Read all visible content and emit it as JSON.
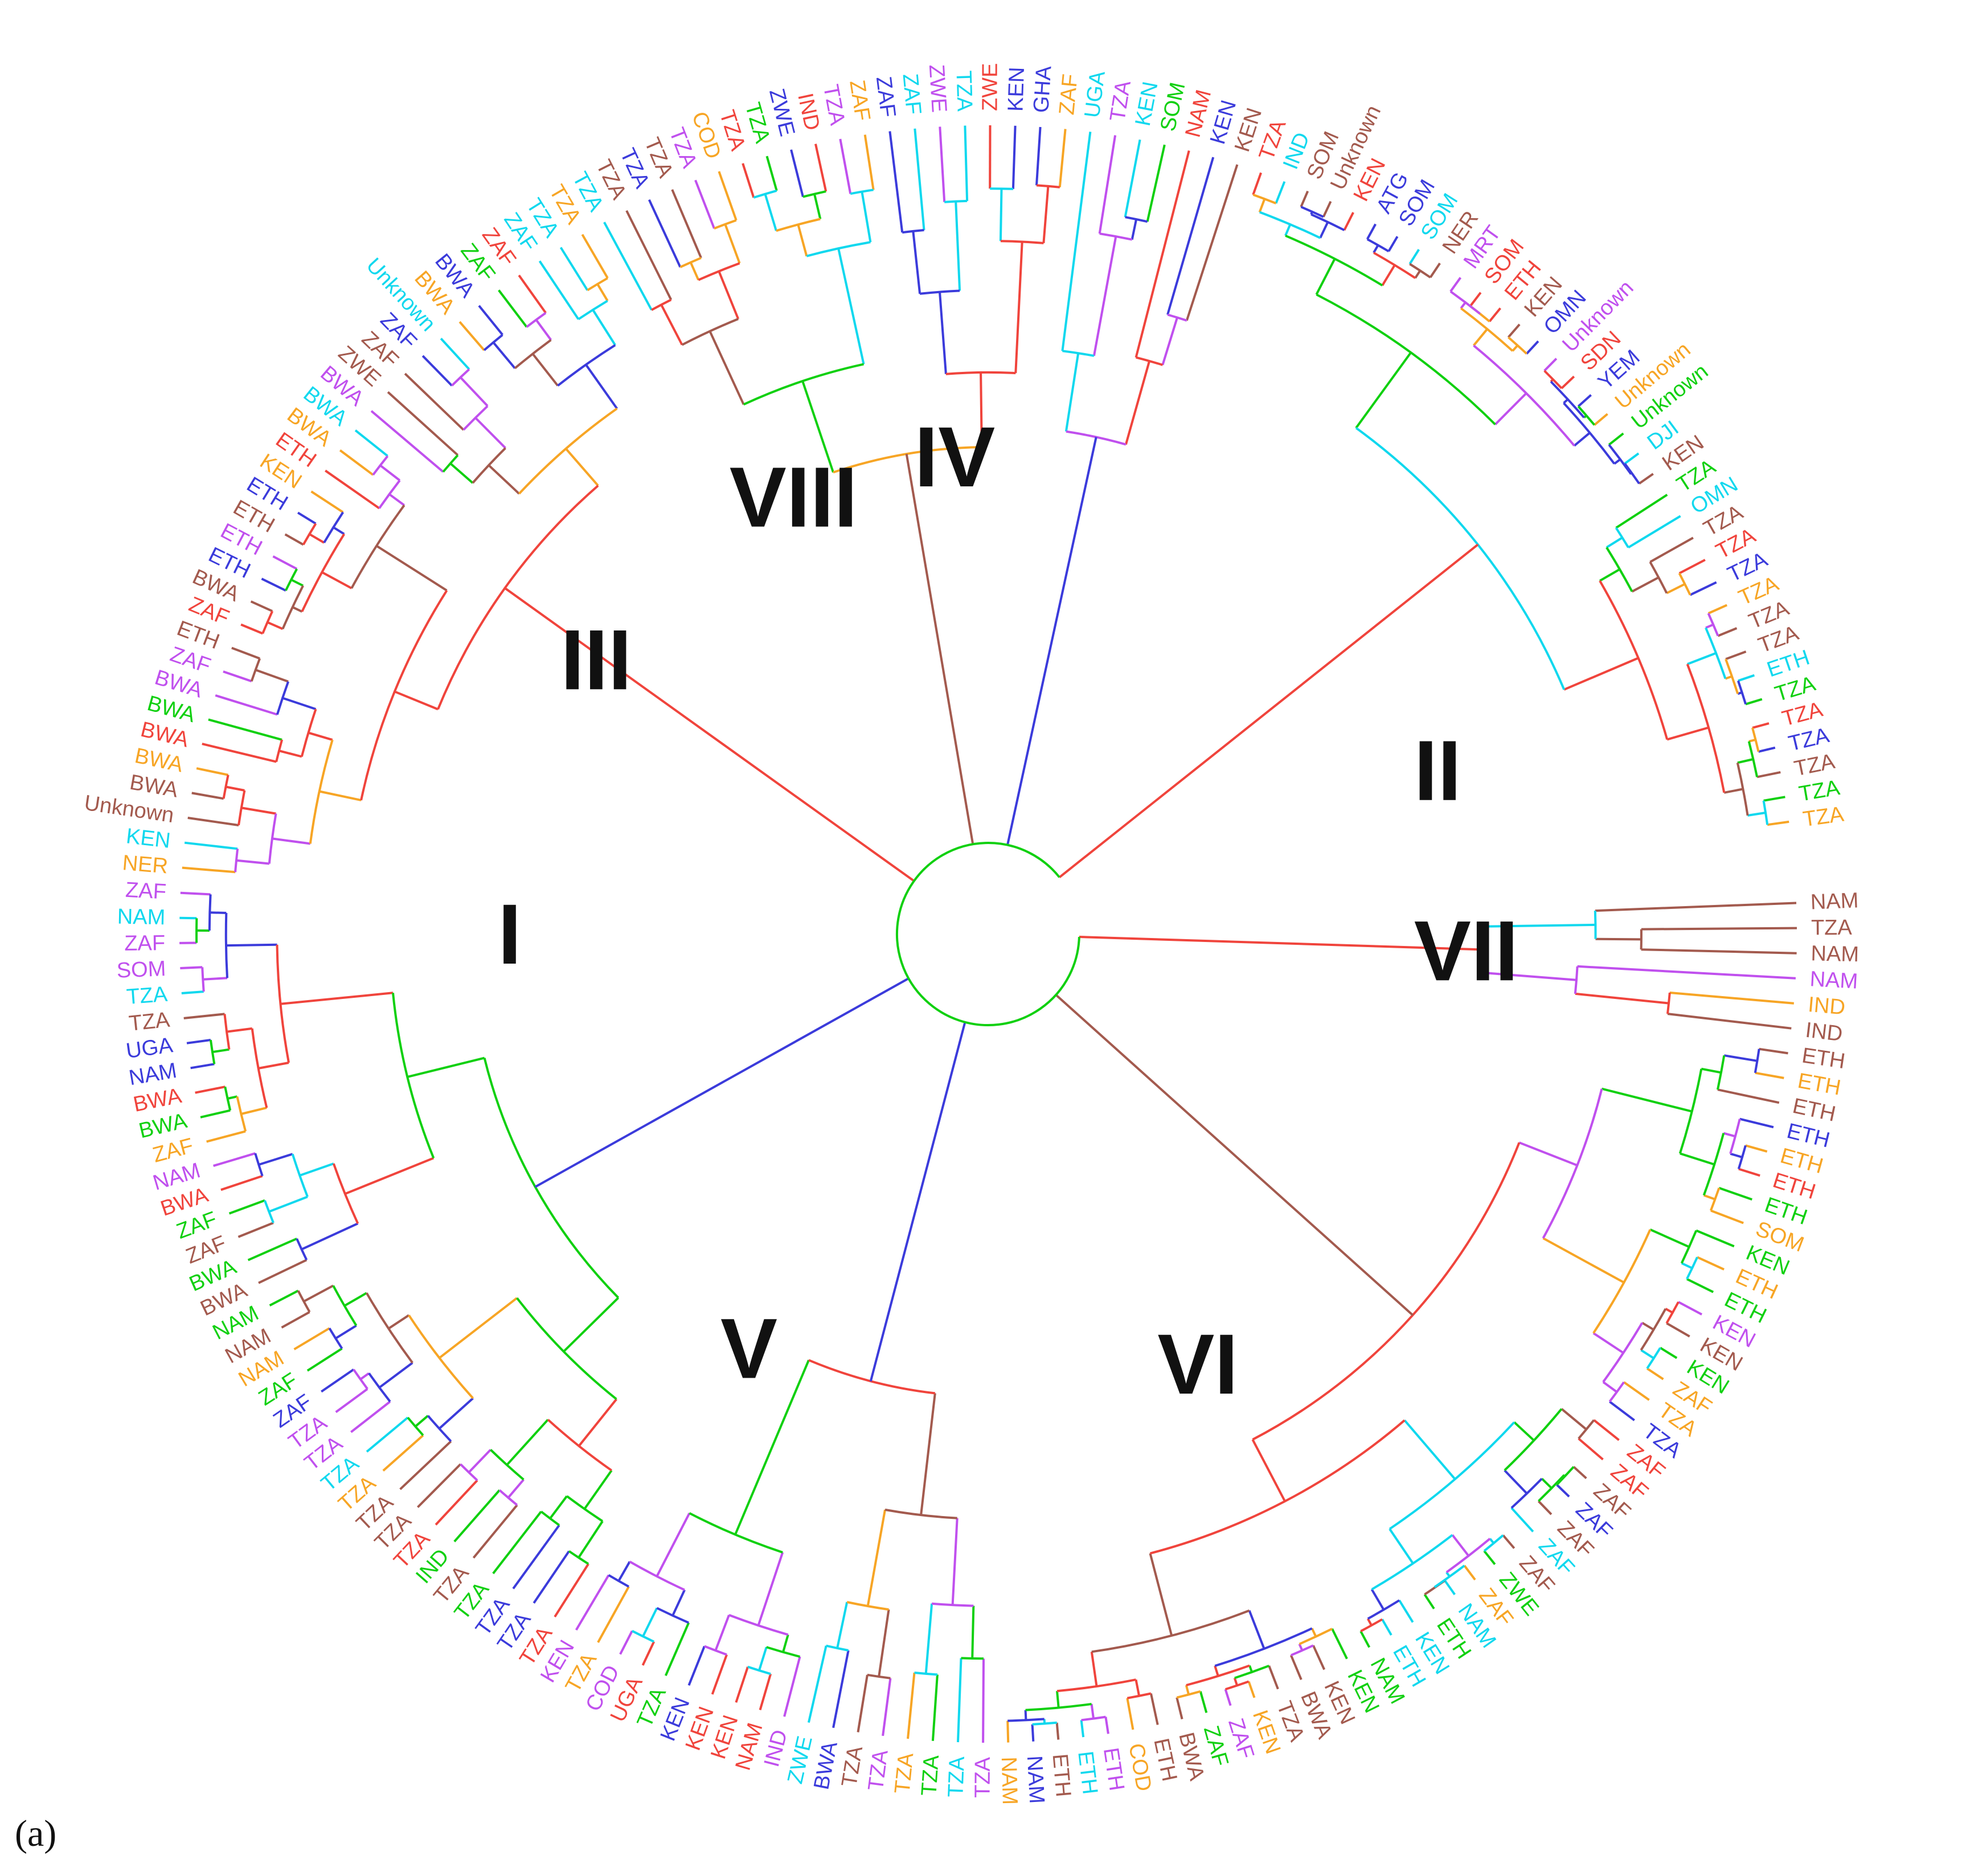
{
  "panel_label": "(a)",
  "colors": {
    "red": "#f0443c",
    "blue": "#3b3bdb",
    "green": "#10d010",
    "magenta": "#c050ee",
    "cyan": "#10d8ee",
    "orange": "#f7a525",
    "brown": "#a35a4e"
  },
  "clades": [
    {
      "label": "I",
      "angle": 180
    },
    {
      "label": "II",
      "angle": 20
    },
    {
      "label": "III",
      "angle": 145
    },
    {
      "label": "IV",
      "angle": 94
    },
    {
      "label": "V",
      "angle": 240
    },
    {
      "label": "VI",
      "angle": 296
    },
    {
      "label": "VII",
      "angle": 358
    },
    {
      "label": "VIII",
      "angle": 114
    }
  ],
  "leaves": [
    {
      "text": "NAM",
      "color": "brown"
    },
    {
      "text": "TZA",
      "color": "brown"
    },
    {
      "text": "NAM",
      "color": "brown"
    },
    {
      "text": "NAM",
      "color": "magenta"
    },
    {
      "text": "IND",
      "color": "orange"
    },
    {
      "text": "IND",
      "color": "brown"
    },
    {
      "text": "ETH",
      "color": "brown"
    },
    {
      "text": "ETH",
      "color": "orange"
    },
    {
      "text": "ETH",
      "color": "brown"
    },
    {
      "text": "ETH",
      "color": "blue"
    },
    {
      "text": "ETH",
      "color": "orange"
    },
    {
      "text": "ETH",
      "color": "red"
    },
    {
      "text": "ETH",
      "color": "green"
    },
    {
      "text": "SOM",
      "color": "orange"
    },
    {
      "text": "KEN",
      "color": "green"
    },
    {
      "text": "ETH",
      "color": "orange"
    },
    {
      "text": "ETH",
      "color": "green"
    },
    {
      "text": "KEN",
      "color": "magenta"
    },
    {
      "text": "KEN",
      "color": "brown"
    },
    {
      "text": "KEN",
      "color": "green"
    },
    {
      "text": "ZAF",
      "color": "orange"
    },
    {
      "text": "TZA",
      "color": "orange"
    },
    {
      "text": "TZA",
      "color": "blue"
    },
    {
      "text": "ZAF",
      "color": "red"
    },
    {
      "text": "ZAF",
      "color": "red"
    },
    {
      "text": "ZAF",
      "color": "brown"
    },
    {
      "text": "ZAF",
      "color": "blue"
    },
    {
      "text": "ZAF",
      "color": "brown"
    },
    {
      "text": "ZAF",
      "color": "cyan"
    },
    {
      "text": "ZAF",
      "color": "brown"
    },
    {
      "text": "ZWE",
      "color": "green"
    },
    {
      "text": "ZAF",
      "color": "orange"
    },
    {
      "text": "NAM",
      "color": "cyan"
    },
    {
      "text": "ETH",
      "color": "green"
    },
    {
      "text": "KEN",
      "color": "cyan"
    },
    {
      "text": "ETH",
      "color": "cyan"
    },
    {
      "text": "NAM",
      "color": "green"
    },
    {
      "text": "KEN",
      "color": "green"
    },
    {
      "text": "KEN",
      "color": "brown"
    },
    {
      "text": "BWA",
      "color": "brown"
    },
    {
      "text": "TZA",
      "color": "brown"
    },
    {
      "text": "KEN",
      "color": "orange"
    },
    {
      "text": "ZAF",
      "color": "magenta"
    },
    {
      "text": "ZAF",
      "color": "green"
    },
    {
      "text": "BWA",
      "color": "brown"
    },
    {
      "text": "ETH",
      "color": "brown"
    },
    {
      "text": "COD",
      "color": "orange"
    },
    {
      "text": "ETH",
      "color": "magenta"
    },
    {
      "text": "ETH",
      "color": "cyan"
    },
    {
      "text": "ETH",
      "color": "brown"
    },
    {
      "text": "NAM",
      "color": "blue"
    },
    {
      "text": "NAM",
      "color": "orange"
    },
    {
      "text": "TZA",
      "color": "magenta"
    },
    {
      "text": "TZA",
      "color": "cyan"
    },
    {
      "text": "TZA",
      "color": "green"
    },
    {
      "text": "TZA",
      "color": "orange"
    },
    {
      "text": "TZA",
      "color": "magenta"
    },
    {
      "text": "TZA",
      "color": "brown"
    },
    {
      "text": "BWA",
      "color": "blue"
    },
    {
      "text": "ZWE",
      "color": "cyan"
    },
    {
      "text": "IND",
      "color": "magenta"
    },
    {
      "text": "NAM",
      "color": "red"
    },
    {
      "text": "KEN",
      "color": "red"
    },
    {
      "text": "KEN",
      "color": "red"
    },
    {
      "text": "KEN",
      "color": "blue"
    },
    {
      "text": "TZA",
      "color": "green"
    },
    {
      "text": "UGA",
      "color": "red"
    },
    {
      "text": "COD",
      "color": "magenta"
    },
    {
      "text": "TZA",
      "color": "orange"
    },
    {
      "text": "KEN",
      "color": "magenta"
    },
    {
      "text": "TZA",
      "color": "red"
    },
    {
      "text": "TZA",
      "color": "blue"
    },
    {
      "text": "TZA",
      "color": "blue"
    },
    {
      "text": "TZA",
      "color": "green"
    },
    {
      "text": "TZA",
      "color": "brown"
    },
    {
      "text": "IND",
      "color": "green"
    },
    {
      "text": "TZA",
      "color": "red"
    },
    {
      "text": "TZA",
      "color": "brown"
    },
    {
      "text": "TZA",
      "color": "brown"
    },
    {
      "text": "TZA",
      "color": "orange"
    },
    {
      "text": "TZA",
      "color": "cyan"
    },
    {
      "text": "TZA",
      "color": "magenta"
    },
    {
      "text": "TZA",
      "color": "magenta"
    },
    {
      "text": "ZAF",
      "color": "blue"
    },
    {
      "text": "ZAF",
      "color": "green"
    },
    {
      "text": "NAM",
      "color": "orange"
    },
    {
      "text": "NAM",
      "color": "brown"
    },
    {
      "text": "NAM",
      "color": "green"
    },
    {
      "text": "BWA",
      "color": "brown"
    },
    {
      "text": "BWA",
      "color": "green"
    },
    {
      "text": "ZAF",
      "color": "brown"
    },
    {
      "text": "ZAF",
      "color": "green"
    },
    {
      "text": "BWA",
      "color": "red"
    },
    {
      "text": "NAM",
      "color": "magenta"
    },
    {
      "text": "ZAF",
      "color": "orange"
    },
    {
      "text": "BWA",
      "color": "green"
    },
    {
      "text": "BWA",
      "color": "red"
    },
    {
      "text": "NAM",
      "color": "blue"
    },
    {
      "text": "UGA",
      "color": "blue"
    },
    {
      "text": "TZA",
      "color": "brown"
    },
    {
      "text": "TZA",
      "color": "cyan"
    },
    {
      "text": "SOM",
      "color": "magenta"
    },
    {
      "text": "ZAF",
      "color": "magenta"
    },
    {
      "text": "NAM",
      "color": "cyan"
    },
    {
      "text": "ZAF",
      "color": "magenta"
    },
    {
      "text": "NER",
      "color": "orange"
    },
    {
      "text": "KEN",
      "color": "cyan"
    },
    {
      "text": "Unknown",
      "color": "brown"
    },
    {
      "text": "BWA",
      "color": "brown"
    },
    {
      "text": "BWA",
      "color": "orange"
    },
    {
      "text": "BWA",
      "color": "red"
    },
    {
      "text": "BWA",
      "color": "green"
    },
    {
      "text": "BWA",
      "color": "magenta"
    },
    {
      "text": "ZAF",
      "color": "magenta"
    },
    {
      "text": "ETH",
      "color": "brown"
    },
    {
      "text": "ZAF",
      "color": "red"
    },
    {
      "text": "BWA",
      "color": "brown"
    },
    {
      "text": "ETH",
      "color": "blue"
    },
    {
      "text": "ETH",
      "color": "magenta"
    },
    {
      "text": "ETH",
      "color": "brown"
    },
    {
      "text": "ETH",
      "color": "blue"
    },
    {
      "text": "KEN",
      "color": "orange"
    },
    {
      "text": "ETH",
      "color": "red"
    },
    {
      "text": "BWA",
      "color": "orange"
    },
    {
      "text": "BWA",
      "color": "cyan"
    },
    {
      "text": "BWA",
      "color": "magenta"
    },
    {
      "text": "ZWE",
      "color": "brown"
    },
    {
      "text": "ZAF",
      "color": "brown"
    },
    {
      "text": "ZAF",
      "color": "blue"
    },
    {
      "text": "Unknown",
      "color": "cyan"
    },
    {
      "text": "BWA",
      "color": "orange"
    },
    {
      "text": "BWA",
      "color": "blue"
    },
    {
      "text": "ZAF",
      "color": "green"
    },
    {
      "text": "ZAF",
      "color": "red"
    },
    {
      "text": "ZAF",
      "color": "cyan"
    },
    {
      "text": "TZA",
      "color": "cyan"
    },
    {
      "text": "TZA",
      "color": "orange"
    },
    {
      "text": "TZA",
      "color": "cyan"
    },
    {
      "text": "TZA",
      "color": "brown"
    },
    {
      "text": "TZA",
      "color": "blue"
    },
    {
      "text": "TZA",
      "color": "brown"
    },
    {
      "text": "TZA",
      "color": "magenta"
    },
    {
      "text": "COD",
      "color": "orange"
    },
    {
      "text": "TZA",
      "color": "red"
    },
    {
      "text": "TZA",
      "color": "green"
    },
    {
      "text": "ZWE",
      "color": "blue"
    },
    {
      "text": "IND",
      "color": "red"
    },
    {
      "text": "TZA",
      "color": "magenta"
    },
    {
      "text": "ZAF",
      "color": "orange"
    },
    {
      "text": "ZAF",
      "color": "blue"
    },
    {
      "text": "ZAF",
      "color": "cyan"
    },
    {
      "text": "ZWE",
      "color": "magenta"
    },
    {
      "text": "TZA",
      "color": "cyan"
    },
    {
      "text": "ZWE",
      "color": "red"
    },
    {
      "text": "KEN",
      "color": "blue"
    },
    {
      "text": "GHA",
      "color": "blue"
    },
    {
      "text": "ZAF",
      "color": "orange"
    },
    {
      "text": "UGA",
      "color": "cyan"
    },
    {
      "text": "TZA",
      "color": "magenta"
    },
    {
      "text": "KEN",
      "color": "cyan"
    },
    {
      "text": "SOM",
      "color": "green"
    },
    {
      "text": "NAM",
      "color": "red"
    },
    {
      "text": "KEN",
      "color": "blue"
    },
    {
      "text": "KEN",
      "color": "brown"
    },
    {
      "text": "TZA",
      "color": "red"
    },
    {
      "text": "IND",
      "color": "cyan"
    },
    {
      "text": "SOM",
      "color": "brown"
    },
    {
      "text": "Unknown",
      "color": "brown"
    },
    {
      "text": "KEN",
      "color": "red"
    },
    {
      "text": "ATG",
      "color": "blue"
    },
    {
      "text": "SOM",
      "color": "blue"
    },
    {
      "text": "SOM",
      "color": "cyan"
    },
    {
      "text": "NER",
      "color": "brown"
    },
    {
      "text": "MRT",
      "color": "magenta"
    },
    {
      "text": "SOM",
      "color": "red"
    },
    {
      "text": "ETH",
      "color": "red"
    },
    {
      "text": "KEN",
      "color": "brown"
    },
    {
      "text": "OMN",
      "color": "blue"
    },
    {
      "text": "Unknown",
      "color": "magenta"
    },
    {
      "text": "SDN",
      "color": "red"
    },
    {
      "text": "YEM",
      "color": "blue"
    },
    {
      "text": "Unknown",
      "color": "orange"
    },
    {
      "text": "Unknown",
      "color": "green"
    },
    {
      "text": "DJI",
      "color": "cyan"
    },
    {
      "text": "KEN",
      "color": "brown"
    },
    {
      "text": "TZA",
      "color": "green"
    },
    {
      "text": "OMN",
      "color": "cyan"
    },
    {
      "text": "TZA",
      "color": "brown"
    },
    {
      "text": "TZA",
      "color": "red"
    },
    {
      "text": "TZA",
      "color": "blue"
    },
    {
      "text": "TZA",
      "color": "orange"
    },
    {
      "text": "TZA",
      "color": "brown"
    },
    {
      "text": "TZA",
      "color": "brown"
    },
    {
      "text": "ETH",
      "color": "cyan"
    },
    {
      "text": "TZA",
      "color": "green"
    },
    {
      "text": "TZA",
      "color": "red"
    },
    {
      "text": "TZA",
      "color": "blue"
    },
    {
      "text": "TZA",
      "color": "brown"
    },
    {
      "text": "TZA",
      "color": "green"
    },
    {
      "text": "TZA",
      "color": "orange"
    }
  ]
}
